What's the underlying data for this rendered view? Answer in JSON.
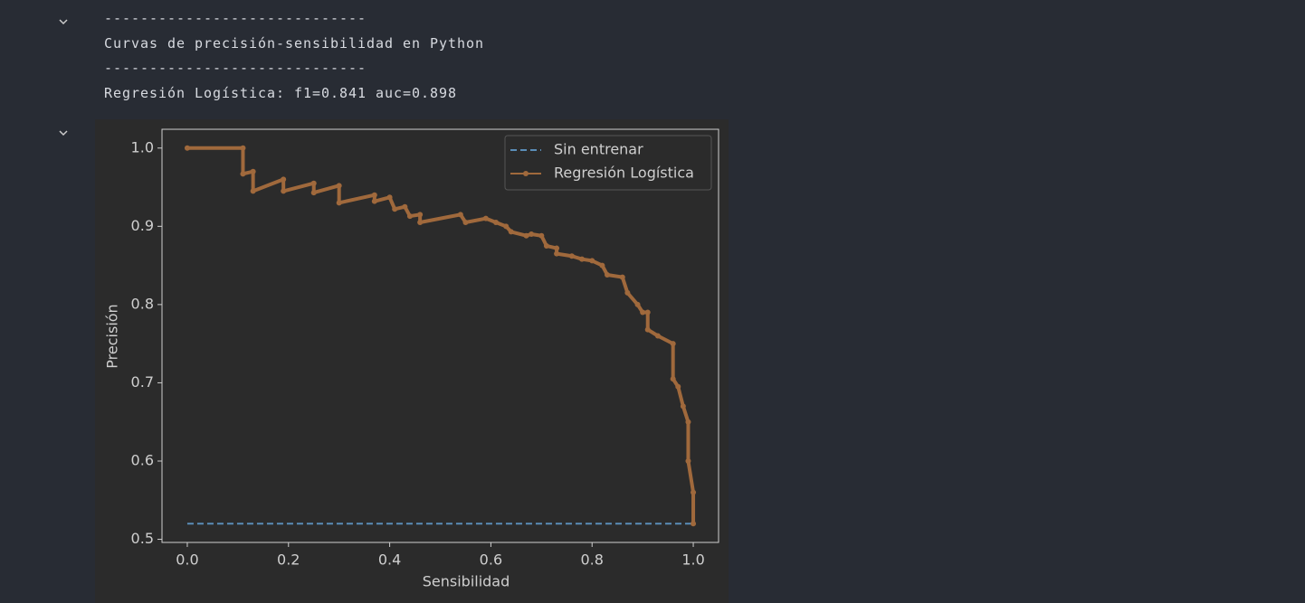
{
  "output": {
    "lines": [
      "-----------------------------",
      "Curvas de precisión-sensibilidad en Python",
      "-----------------------------",
      "Regresión Logística: f1=0.841 auc=0.898"
    ]
  },
  "chart_data": {
    "type": "line",
    "xlabel": "Sensibilidad",
    "ylabel": "Precisión",
    "xlim": [
      -0.05,
      1.05
    ],
    "ylim": [
      0.496,
      1.024
    ],
    "xticks": [
      {
        "value": 0,
        "label": "0.0"
      },
      0.2,
      0.4,
      0.6,
      0.8,
      {
        "value": 1,
        "label": "1.0"
      }
    ],
    "yticks": [
      0.5,
      0.6,
      0.7,
      0.8,
      0.9,
      {
        "value": 1,
        "label": "1.0"
      }
    ],
    "legend": "upper right",
    "series": [
      {
        "name": "Sin entrenar",
        "color": "#5b8db8",
        "dash": true,
        "markers": false,
        "x": [
          0,
          1
        ],
        "values": [
          0.52,
          0.52
        ]
      },
      {
        "name": "Regresión Logística",
        "color": "#a0693c",
        "dash": false,
        "markers": true,
        "x": [
          0,
          0.11,
          0.11,
          0.13,
          0.13,
          0.19,
          0.19,
          0.25,
          0.25,
          0.3,
          0.3,
          0.37,
          0.37,
          0.4,
          0.41,
          0.43,
          0.44,
          0.46,
          0.46,
          0.54,
          0.55,
          0.59,
          0.61,
          0.63,
          0.64,
          0.67,
          0.68,
          0.7,
          0.71,
          0.73,
          0.73,
          0.76,
          0.78,
          0.8,
          0.82,
          0.83,
          0.86,
          0.87,
          0.89,
          0.9,
          0.91,
          0.91,
          0.93,
          0.96,
          0.96,
          0.97,
          0.98,
          0.99,
          0.99,
          1.0,
          1.0
        ],
        "values": [
          1.0,
          1.0,
          0.967,
          0.97,
          0.945,
          0.96,
          0.945,
          0.955,
          0.943,
          0.952,
          0.93,
          0.94,
          0.932,
          0.937,
          0.922,
          0.925,
          0.913,
          0.915,
          0.905,
          0.915,
          0.905,
          0.91,
          0.905,
          0.9,
          0.893,
          0.888,
          0.89,
          0.888,
          0.875,
          0.872,
          0.865,
          0.862,
          0.858,
          0.856,
          0.85,
          0.838,
          0.835,
          0.815,
          0.8,
          0.79,
          0.79,
          0.768,
          0.76,
          0.75,
          0.705,
          0.695,
          0.67,
          0.65,
          0.6,
          0.56,
          0.52
        ]
      }
    ]
  }
}
